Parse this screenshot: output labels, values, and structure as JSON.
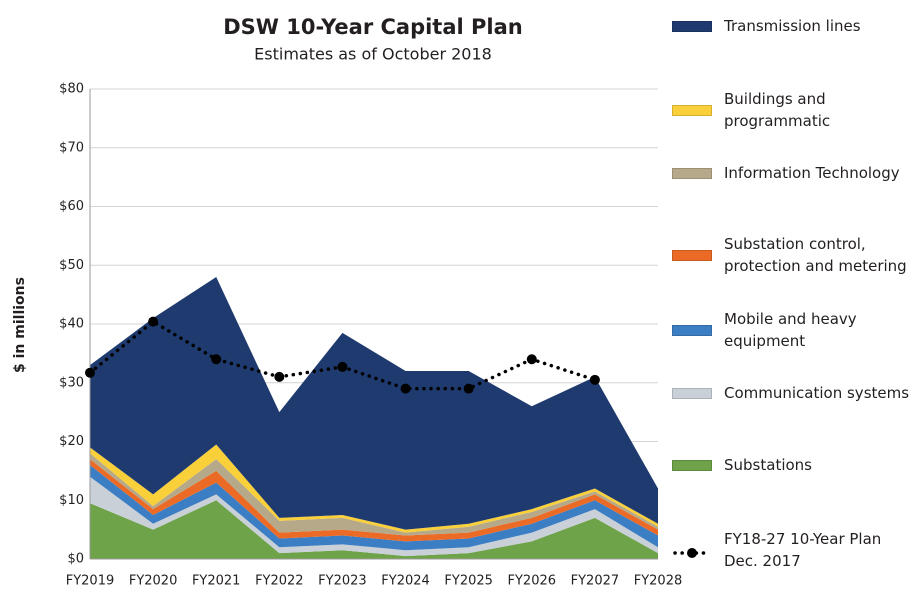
{
  "chart_data": {
    "type": "area",
    "stacked": true,
    "title": "DSW 10-Year Capital Plan",
    "subtitle": "Estimates as of October 2018",
    "y_label": "$ in millions",
    "categories": [
      "FY2019",
      "FY2020",
      "FY2021",
      "FY2022",
      "FY2023",
      "FY2024",
      "FY2025",
      "FY2026",
      "FY2027",
      "FY2028"
    ],
    "ylim": [
      0,
      80
    ],
    "yticks": [
      {
        "value": 0,
        "label": "$0"
      },
      {
        "value": 10,
        "label": "$10"
      },
      {
        "value": 20,
        "label": "$20"
      },
      {
        "value": 30,
        "label": "$30"
      },
      {
        "value": 40,
        "label": "$40"
      },
      {
        "value": 50,
        "label": "$50"
      },
      {
        "value": 60,
        "label": "$60"
      },
      {
        "value": 70,
        "label": "$70"
      },
      {
        "value": 80,
        "label": "$80"
      }
    ],
    "grid": true,
    "legend": "right",
    "series": [
      {
        "name": "Transmission lines",
        "color": "#1f3a6e",
        "values": [
          14,
          30,
          28.5,
          18,
          31,
          27,
          26,
          17.5,
          19,
          6
        ]
      },
      {
        "name": "Buildings and\nprogrammatic",
        "color": "#f9cf3a",
        "values": [
          1,
          2,
          2.5,
          0.5,
          0.5,
          0.5,
          0.5,
          0.5,
          0.5,
          0.5
        ]
      },
      {
        "name": "Information Technology",
        "color": "#b5a98a",
        "values": [
          1,
          0.5,
          2,
          2,
          2,
          0.5,
          1,
          1,
          0.5,
          0.5
        ]
      },
      {
        "name": "Substation control,\nprotection and metering",
        "color": "#ea6a26",
        "values": [
          1,
          1,
          2,
          1,
          1,
          1,
          1,
          1,
          1,
          1
        ]
      },
      {
        "name": "Mobile and heavy\nequipment",
        "color": "#3c7ec4",
        "values": [
          2,
          1.5,
          2,
          1.5,
          1.5,
          1.5,
          1.5,
          1.5,
          1.5,
          2
        ]
      },
      {
        "name": "Communication systems",
        "color": "#c9d0d8",
        "values": [
          4.5,
          1,
          1,
          1,
          1,
          1,
          1,
          1.5,
          1.5,
          1
        ]
      },
      {
        "name": "Substations",
        "color": "#6ea34a",
        "values": [
          9.5,
          5,
          10,
          1,
          1.5,
          0.5,
          1,
          3,
          7,
          1
        ]
      },
      {
        "name": "FY18-27 10-Year Plan\nDec. 2017",
        "color": "#000000",
        "type": "line",
        "values": [
          31.7,
          40.4,
          34,
          31,
          32.7,
          29,
          29,
          34,
          30.5,
          null
        ]
      }
    ]
  }
}
